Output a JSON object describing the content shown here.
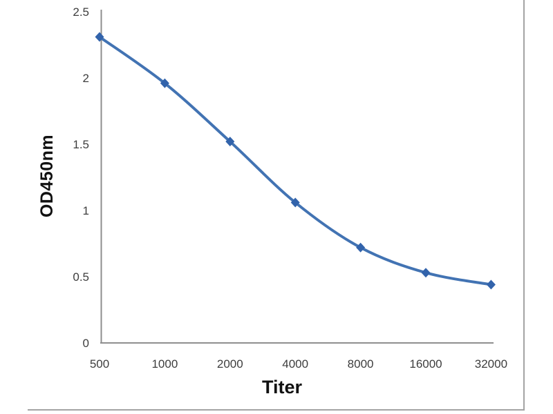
{
  "chart_data": {
    "type": "line",
    "title": "",
    "xlabel": "Titer",
    "ylabel": "OD450nm",
    "categories": [
      "500",
      "1000",
      "2000",
      "4000",
      "8000",
      "16000",
      "32000"
    ],
    "x_values": [
      500,
      1000,
      2000,
      4000,
      8000,
      16000,
      32000
    ],
    "values": [
      2.31,
      1.96,
      1.52,
      1.06,
      0.72,
      0.53,
      0.44
    ],
    "ylim": [
      0,
      2.5
    ],
    "yticks": [
      "0",
      "0.5",
      "1",
      "1.5",
      "2",
      "2.5"
    ],
    "grid": false,
    "legend": "none",
    "line_smooth": true,
    "marker": "diamond",
    "x_axis_note": "categorical log2-spaced titer dilutions"
  },
  "colors": {
    "line": "#4273b3",
    "marker": "#3263ab",
    "axis": "#8e8e8e",
    "tick_text": "#3d3d3d",
    "title_text": "#111111",
    "frame": "#a3a3a3",
    "background": "#ffffff"
  }
}
